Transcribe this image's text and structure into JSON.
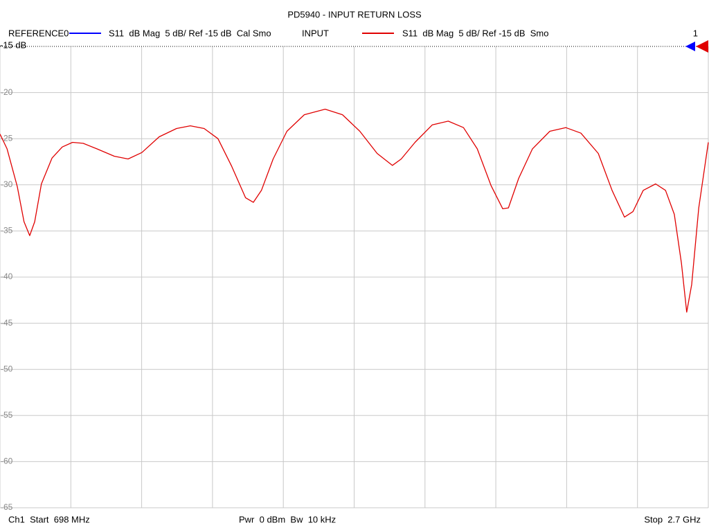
{
  "chart_data": {
    "type": "line",
    "title": "PD5940 - INPUT RETURN LOSS",
    "reference_trace": {
      "name": "REFERENCE0",
      "color": "#0000ff",
      "description": "S11  dB Mag  5 dB/ Ref -15 dB  Cal Smo"
    },
    "channel_number": "1",
    "footer": {
      "start": "Ch1  Start  698 MHz",
      "power": "Pwr  0 dBm  Bw  10 kHz",
      "stop": "Stop  2.7 GHz"
    },
    "x": [
      698,
      718,
      747,
      766,
      782,
      796,
      815,
      845,
      874,
      903,
      933,
      972,
      1021,
      1060,
      1099,
      1148,
      1197,
      1236,
      1275,
      1314,
      1353,
      1392,
      1414,
      1437,
      1470,
      1509,
      1558,
      1617,
      1666,
      1715,
      1764,
      1807,
      1832,
      1871,
      1920,
      1965,
      2008,
      2047,
      2086,
      2119,
      2135,
      2164,
      2203,
      2252,
      2297,
      2340,
      2389,
      2428,
      2463,
      2487,
      2516,
      2551,
      2579,
      2604,
      2624,
      2639,
      2653,
      2673,
      2700
    ],
    "series": [
      {
        "name": "INPUT",
        "description": "S11  dB Mag  5 dB/ Ref -15 dB  Smo",
        "color": "#e00000",
        "values": [
          -24.5,
          -26.1,
          -30.2,
          -34.0,
          -35.5,
          -34.0,
          -29.9,
          -27.1,
          -25.9,
          -25.4,
          -25.5,
          -26.1,
          -26.9,
          -27.2,
          -26.5,
          -24.8,
          -23.9,
          -23.6,
          -23.9,
          -25.0,
          -28.0,
          -31.4,
          -31.9,
          -30.6,
          -27.2,
          -24.2,
          -22.4,
          -21.8,
          -22.4,
          -24.2,
          -26.6,
          -27.9,
          -27.2,
          -25.4,
          -23.5,
          -23.1,
          -23.8,
          -26.1,
          -30.1,
          -32.6,
          -32.5,
          -29.3,
          -26.1,
          -24.2,
          -23.8,
          -24.4,
          -26.6,
          -30.6,
          -33.5,
          -32.9,
          -30.6,
          -29.9,
          -30.6,
          -33.2,
          -38.5,
          -43.8,
          -40.8,
          -32.5,
          -25.4
        ]
      }
    ],
    "xlim": [
      698,
      2700
    ],
    "x_grid_divisions": 10,
    "ylim": [
      -65,
      -15
    ],
    "yticks": [
      {
        "value": -15,
        "label": "-15 dB"
      },
      -20,
      -25,
      -30,
      -35,
      -40,
      -45,
      -50,
      -55,
      -60,
      -65
    ],
    "grid": true
  }
}
